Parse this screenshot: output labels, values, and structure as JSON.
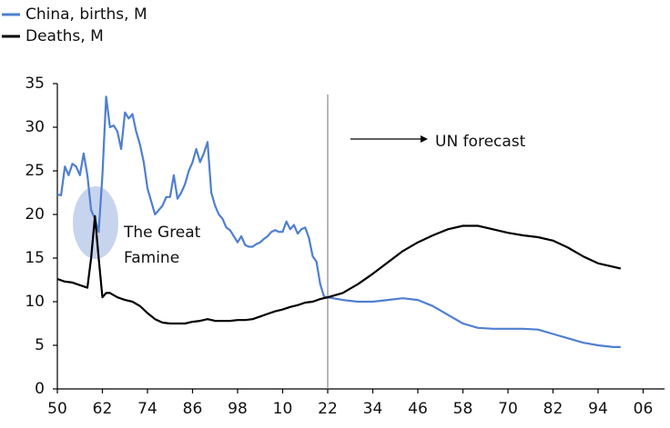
{
  "chart_data": {
    "type": "line",
    "series": [
      {
        "name": "China, births, M",
        "color": "#4f7fcf",
        "x": [
          1950,
          1951,
          1952,
          1953,
          1954,
          1955,
          1956,
          1957,
          1958,
          1959,
          1960,
          1961,
          1962,
          1963,
          1964,
          1965,
          1966,
          1967,
          1968,
          1969,
          1970,
          1971,
          1972,
          1973,
          1974,
          1975,
          1976,
          1977,
          1978,
          1979,
          1980,
          1981,
          1982,
          1983,
          1984,
          1985,
          1986,
          1987,
          1988,
          1989,
          1990,
          1991,
          1992,
          1993,
          1994,
          1995,
          1996,
          1997,
          1998,
          1999,
          2000,
          2001,
          2002,
          2003,
          2004,
          2005,
          2006,
          2007,
          2008,
          2009,
          2010,
          2011,
          2012,
          2013,
          2014,
          2015,
          2016,
          2017,
          2018,
          2019,
          2020,
          2021,
          2022,
          2026,
          2030,
          2034,
          2038,
          2042,
          2046,
          2050,
          2054,
          2058,
          2062,
          2066,
          2070,
          2074,
          2078,
          2082,
          2086,
          2090,
          2094,
          2098,
          2100
        ],
        "values": [
          22.3,
          22.2,
          25.5,
          24.5,
          25.8,
          25.5,
          24.5,
          27,
          24.5,
          20.5,
          19.5,
          18,
          24.5,
          33.5,
          30,
          30.2,
          29.5,
          27.5,
          31.7,
          31,
          31.5,
          29.5,
          28,
          26,
          23,
          21.5,
          20,
          20.5,
          21,
          22,
          22,
          24.5,
          21.8,
          22.5,
          23.5,
          25,
          26,
          27.5,
          26,
          27,
          28.3,
          22.5,
          21,
          20,
          19.5,
          18.5,
          18.2,
          17.5,
          16.8,
          17.5,
          16.5,
          16.3,
          16.3,
          16.6,
          16.8,
          17.2,
          17.5,
          18,
          18.2,
          18,
          18,
          19.2,
          18.3,
          18.8,
          17.8,
          18.3,
          18.5,
          17.3,
          15.2,
          14.6,
          12,
          10.6,
          10.5,
          10.2,
          10,
          10,
          10.2,
          10.4,
          10.2,
          9.5,
          8.5,
          7.5,
          7,
          6.9,
          6.9,
          6.9,
          6.8,
          6.3,
          5.8,
          5.3,
          5,
          4.8,
          4.8
        ]
      },
      {
        "name": "Deaths, M",
        "color": "#000000",
        "x": [
          1950,
          1952,
          1954,
          1956,
          1958,
          1959,
          1960,
          1961,
          1962,
          1963,
          1964,
          1966,
          1968,
          1970,
          1972,
          1974,
          1976,
          1978,
          1980,
          1982,
          1984,
          1986,
          1988,
          1990,
          1992,
          1994,
          1996,
          1998,
          2000,
          2002,
          2004,
          2006,
          2008,
          2010,
          2012,
          2014,
          2016,
          2018,
          2020,
          2022,
          2026,
          2030,
          2034,
          2038,
          2042,
          2046,
          2050,
          2054,
          2058,
          2062,
          2066,
          2070,
          2074,
          2078,
          2082,
          2086,
          2090,
          2094,
          2098,
          2100
        ],
        "values": [
          12.6,
          12.3,
          12.2,
          11.9,
          11.6,
          15,
          19.8,
          15,
          10.5,
          11,
          11,
          10.5,
          10.2,
          10,
          9.5,
          8.7,
          8,
          7.6,
          7.5,
          7.5,
          7.5,
          7.7,
          7.8,
          8,
          7.8,
          7.8,
          7.8,
          7.9,
          7.9,
          8,
          8.3,
          8.6,
          8.9,
          9.1,
          9.4,
          9.6,
          9.9,
          10,
          10.3,
          10.5,
          11,
          12,
          13.2,
          14.5,
          15.8,
          16.8,
          17.6,
          18.3,
          18.7,
          18.7,
          18.3,
          17.9,
          17.6,
          17.4,
          17,
          16.2,
          15.2,
          14.4,
          14,
          13.8
        ]
      }
    ],
    "xlim": [
      1950,
      2110
    ],
    "xticks": [
      {
        "value": 1950,
        "label": "50"
      },
      {
        "value": 1962,
        "label": "62"
      },
      {
        "value": 1974,
        "label": "74"
      },
      {
        "value": 1986,
        "label": "86"
      },
      {
        "value": 1998,
        "label": "98"
      },
      {
        "value": 2010,
        "label": "10"
      },
      {
        "value": 2022,
        "label": "22"
      },
      {
        "value": 2034,
        "label": "34"
      },
      {
        "value": 2046,
        "label": "46"
      },
      {
        "value": 2058,
        "label": "58"
      },
      {
        "value": 2070,
        "label": "70"
      },
      {
        "value": 2082,
        "label": "82"
      },
      {
        "value": 2094,
        "label": "94"
      },
      {
        "value": 2106,
        "label": "06"
      }
    ],
    "ylim": [
      0,
      35
    ],
    "yticks": [
      0,
      5,
      10,
      15,
      20,
      25,
      30,
      35
    ],
    "grid": false,
    "legend": "top-left",
    "forecast_start": 2022,
    "forecast_label": "UN forecast",
    "famine_label": [
      "The Great",
      "Famine"
    ]
  }
}
